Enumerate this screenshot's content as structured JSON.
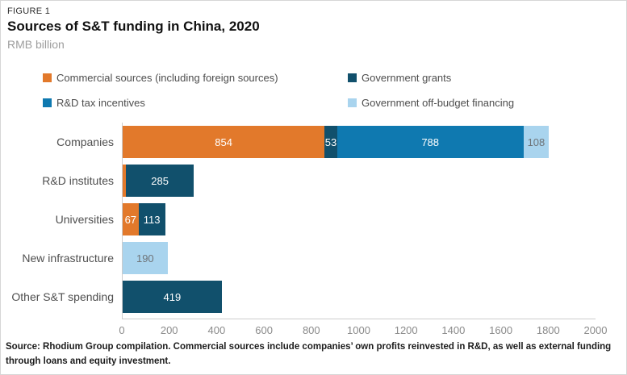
{
  "figure_label": "FIGURE 1",
  "title": "Sources of S&T funding in China, 2020",
  "subtitle": "RMB billion",
  "source_note": "Source: Rhodium Group compilation. Commercial sources include companies’ own profits reinvested in R&D, as well as external funding through loans and equity investment.",
  "colors": {
    "orange": "#E2792B",
    "navy": "#11506C",
    "blue": "#0F79B0",
    "lightblue": "#A9D4EE",
    "label_on_dark": "#ffffff",
    "label_on_light": "#6e7377",
    "axis_line": "#cccccc"
  },
  "legend": [
    {
      "label": "Commercial sources (including foreign sources)",
      "color_key": "orange"
    },
    {
      "label": "Government grants",
      "color_key": "navy"
    },
    {
      "label": "R&D tax incentives",
      "color_key": "blue"
    },
    {
      "label": "Government off-budget financing",
      "color_key": "lightblue"
    }
  ],
  "chart_data": {
    "type": "bar",
    "orientation": "horizontal",
    "stacked": true,
    "title": "Sources of S&T funding in China, 2020",
    "ylabel": "",
    "xlabel": "RMB billion",
    "xlim": [
      0,
      2000
    ],
    "x_ticks": [
      0,
      200,
      400,
      600,
      800,
      1000,
      1200,
      1400,
      1600,
      1800,
      2000
    ],
    "grid": false,
    "legend_position": "top",
    "categories": [
      "Companies",
      "R&D institutes",
      "Universities",
      "New infrastructure",
      "Other S&T spending"
    ],
    "series": [
      {
        "name": "Commercial sources (including foreign sources)",
        "color_key": "orange",
        "values": [
          854,
          15,
          67,
          0,
          0
        ],
        "labels": [
          "854",
          "",
          "67",
          "",
          ""
        ]
      },
      {
        "name": "Government grants",
        "color_key": "navy",
        "values": [
          53,
          285,
          113,
          0,
          419
        ],
        "labels": [
          "53",
          "285",
          "113",
          "",
          "419"
        ]
      },
      {
        "name": "R&D tax incentives",
        "color_key": "blue",
        "values": [
          788,
          0,
          0,
          0,
          0
        ],
        "labels": [
          "788",
          "",
          "",
          "",
          ""
        ]
      },
      {
        "name": "Government off-budget financing",
        "color_key": "lightblue",
        "values": [
          108,
          0,
          0,
          190,
          0
        ],
        "labels": [
          "108",
          "",
          "",
          "190",
          ""
        ]
      }
    ]
  }
}
